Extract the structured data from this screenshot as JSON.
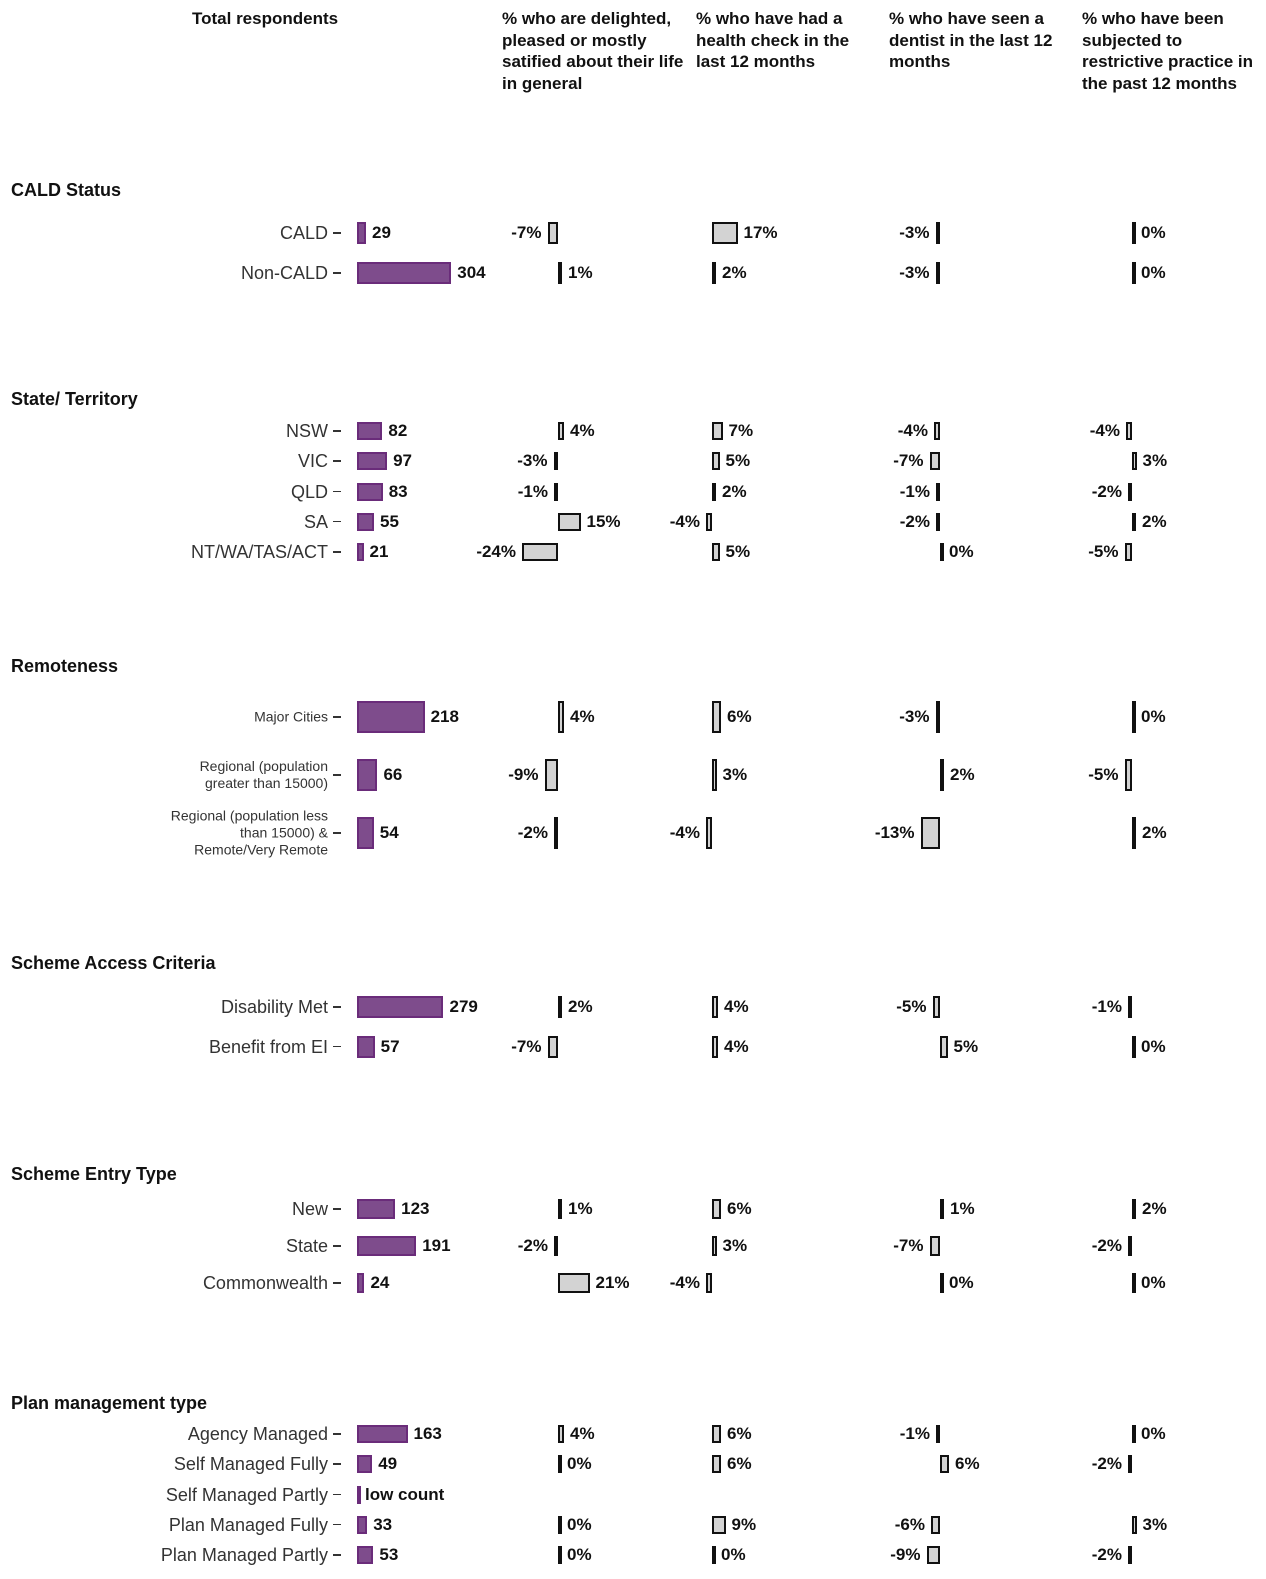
{
  "chart_data": {
    "type": "bar",
    "columns": [
      "Total respondents",
      "% who are delighted, pleased or mostly satified about their life in general",
      "% who have had a health check in the last 12 months",
      "% who have seen a dentist in the last 12 months",
      "% who have been subjected to restrictive practice in the past 12 months"
    ],
    "count_color": "#7e4c8c",
    "diff_color": "#d3d3d3",
    "groups": [
      {
        "name": "CALD Status",
        "rows": [
          {
            "label": "CALD",
            "count": 29,
            "values": [
              -7,
              17,
              -3,
              0
            ],
            "value_labels": [
              "-7%",
              "17%",
              "-3%",
              "0%"
            ]
          },
          {
            "label": "Non-CALD",
            "count": 304,
            "values": [
              1,
              2,
              -3,
              0
            ],
            "value_labels": [
              "1%",
              "2%",
              "-3%",
              "0%"
            ]
          }
        ]
      },
      {
        "name": "State/ Territory",
        "rows": [
          {
            "label": "NSW",
            "count": 82,
            "values": [
              4,
              7,
              -4,
              -4
            ],
            "value_labels": [
              "4%",
              "7%",
              "-4%",
              "-4%"
            ]
          },
          {
            "label": "VIC",
            "count": 97,
            "values": [
              -3,
              5,
              -7,
              3
            ],
            "value_labels": [
              "-3%",
              "5%",
              "-7%",
              "3%"
            ]
          },
          {
            "label": "QLD",
            "count": 83,
            "values": [
              -1,
              2,
              -1,
              -2
            ],
            "value_labels": [
              "-1%",
              "2%",
              "-1%",
              "-2%"
            ]
          },
          {
            "label": "SA",
            "count": 55,
            "values": [
              15,
              -4,
              -2,
              2
            ],
            "value_labels": [
              "15%",
              "-4%",
              "-2%",
              "2%"
            ]
          },
          {
            "label": "NT/WA/TAS/ACT",
            "count": 21,
            "values": [
              -24,
              5,
              0,
              -5
            ],
            "value_labels": [
              "-24%",
              "5%",
              "0%",
              "-5%"
            ]
          }
        ]
      },
      {
        "name": "Remoteness",
        "small": true,
        "rows": [
          {
            "label": "Major Cities",
            "count": 218,
            "values": [
              4,
              6,
              -3,
              0
            ],
            "value_labels": [
              "4%",
              "6%",
              "-3%",
              "0%"
            ]
          },
          {
            "label": "Regional (population greater than 15000)",
            "count": 66,
            "values": [
              -9,
              3,
              2,
              -5
            ],
            "value_labels": [
              "-9%",
              "3%",
              "2%",
              "-5%"
            ]
          },
          {
            "label": "Regional (population less than 15000) & Remote/Very Remote",
            "count": 54,
            "values": [
              -2,
              -4,
              -13,
              2
            ],
            "value_labels": [
              "-2%",
              "-4%",
              "-13%",
              "2%"
            ]
          }
        ]
      },
      {
        "name": "Scheme Access Criteria",
        "rows": [
          {
            "label": "Disability Met",
            "count": 279,
            "values": [
              2,
              4,
              -5,
              -1
            ],
            "value_labels": [
              "2%",
              "4%",
              "-5%",
              "-1%"
            ]
          },
          {
            "label": "Benefit from EI",
            "count": 57,
            "values": [
              -7,
              4,
              5,
              0
            ],
            "value_labels": [
              "-7%",
              "4%",
              "5%",
              "0%"
            ]
          }
        ]
      },
      {
        "name": "Scheme Entry Type",
        "rows": [
          {
            "label": "New",
            "count": 123,
            "values": [
              1,
              6,
              1,
              2
            ],
            "value_labels": [
              "1%",
              "6%",
              "1%",
              "2%"
            ]
          },
          {
            "label": "State",
            "count": 191,
            "values": [
              -2,
              3,
              -7,
              -2
            ],
            "value_labels": [
              "-2%",
              "3%",
              "-7%",
              "-2%"
            ]
          },
          {
            "label": "Commonwealth",
            "count": 24,
            "values": [
              21,
              -4,
              0,
              0
            ],
            "value_labels": [
              "21%",
              "-4%",
              "0%",
              "0%"
            ]
          }
        ]
      },
      {
        "name": "Plan management type",
        "rows": [
          {
            "label": "Agency Managed",
            "count": 163,
            "values": [
              4,
              6,
              -1,
              0
            ],
            "value_labels": [
              "4%",
              "6%",
              "-1%",
              "0%"
            ]
          },
          {
            "label": "Self Managed Fully",
            "count": 49,
            "values": [
              0,
              6,
              6,
              -2
            ],
            "value_labels": [
              "0%",
              "6%",
              "6%",
              "-2%"
            ]
          },
          {
            "label": "Self Managed Partly",
            "count": 3,
            "count_label": "low count",
            "values": [
              null,
              null,
              null,
              null
            ],
            "value_labels": [
              null,
              null,
              null,
              null
            ]
          },
          {
            "label": "Plan Managed Fully",
            "count": 33,
            "values": [
              0,
              9,
              -6,
              3
            ],
            "value_labels": [
              "0%",
              "9%",
              "-6%",
              "3%"
            ]
          },
          {
            "label": "Plan Managed Partly",
            "count": 53,
            "values": [
              0,
              0,
              -9,
              -2
            ],
            "value_labels": [
              "0%",
              "0%",
              "-9%",
              "-2%"
            ]
          }
        ]
      }
    ]
  }
}
